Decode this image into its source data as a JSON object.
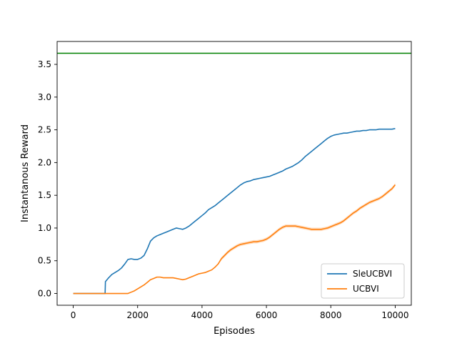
{
  "chart_data": {
    "type": "line",
    "title": "",
    "xlabel": "Episodes",
    "ylabel": "Instantanous Reward",
    "xlim": [
      -500,
      10500
    ],
    "ylim": [
      -0.18,
      3.85
    ],
    "xticks": [
      0,
      2000,
      4000,
      6000,
      8000,
      10000
    ],
    "yticks": [
      0.0,
      0.5,
      1.0,
      1.5,
      2.0,
      2.5,
      3.0,
      3.5
    ],
    "xtick_labels": [
      "0",
      "2000",
      "4000",
      "6000",
      "8000",
      "10000"
    ],
    "ytick_labels": [
      "0.0",
      "0.5",
      "1.0",
      "1.5",
      "2.0",
      "2.5",
      "3.0",
      "3.5"
    ],
    "grid": false,
    "legend_position": "lower-right",
    "reference_line": {
      "y": 3.67,
      "color": "#008000"
    },
    "series": [
      {
        "name": "SleUCBVI",
        "color": "#1f77b4",
        "x": [
          0,
          990,
          1000,
          1100,
          1200,
          1300,
          1400,
          1500,
          1600,
          1700,
          1800,
          1900,
          2000,
          2100,
          2200,
          2300,
          2400,
          2500,
          2600,
          2700,
          2800,
          2900,
          3000,
          3100,
          3200,
          3300,
          3400,
          3500,
          3600,
          3700,
          3800,
          3900,
          4000,
          4100,
          4200,
          4300,
          4400,
          4500,
          4600,
          4700,
          4800,
          4900,
          5000,
          5100,
          5200,
          5300,
          5400,
          5500,
          5600,
          5700,
          5800,
          5900,
          6000,
          6100,
          6200,
          6300,
          6400,
          6500,
          6600,
          6700,
          6800,
          6900,
          7000,
          7100,
          7200,
          7300,
          7400,
          7500,
          7600,
          7700,
          7800,
          7900,
          8000,
          8100,
          8200,
          8300,
          8400,
          8500,
          8600,
          8700,
          8800,
          8900,
          9000,
          9100,
          9200,
          9300,
          9400,
          9500,
          9600,
          9700,
          9800,
          9900,
          10000
        ],
        "y": [
          0.0,
          0.0,
          0.18,
          0.24,
          0.29,
          0.32,
          0.35,
          0.39,
          0.45,
          0.52,
          0.53,
          0.52,
          0.52,
          0.54,
          0.58,
          0.68,
          0.8,
          0.85,
          0.88,
          0.9,
          0.92,
          0.94,
          0.96,
          0.98,
          1.0,
          0.99,
          0.98,
          1.0,
          1.03,
          1.07,
          1.11,
          1.15,
          1.19,
          1.23,
          1.28,
          1.31,
          1.34,
          1.38,
          1.42,
          1.46,
          1.5,
          1.54,
          1.58,
          1.62,
          1.66,
          1.69,
          1.71,
          1.72,
          1.74,
          1.75,
          1.76,
          1.77,
          1.78,
          1.79,
          1.81,
          1.83,
          1.85,
          1.87,
          1.9,
          1.92,
          1.94,
          1.97,
          2.0,
          2.04,
          2.09,
          2.13,
          2.17,
          2.21,
          2.25,
          2.29,
          2.33,
          2.37,
          2.4,
          2.42,
          2.43,
          2.44,
          2.45,
          2.45,
          2.46,
          2.47,
          2.48,
          2.48,
          2.49,
          2.49,
          2.5,
          2.5,
          2.5,
          2.51,
          2.51,
          2.51,
          2.51,
          2.51,
          2.52
        ]
      },
      {
        "name": "UCBVI",
        "color": "#ff7f0e",
        "x": [
          0,
          1000,
          1600,
          1700,
          1800,
          1900,
          2000,
          2100,
          2200,
          2300,
          2400,
          2500,
          2600,
          2700,
          2800,
          2900,
          3000,
          3100,
          3200,
          3300,
          3400,
          3500,
          3600,
          3700,
          3800,
          3900,
          4000,
          4100,
          4200,
          4300,
          4400,
          4500,
          4600,
          4700,
          4800,
          4900,
          5000,
          5100,
          5200,
          5300,
          5400,
          5500,
          5600,
          5700,
          5800,
          5900,
          6000,
          6100,
          6200,
          6300,
          6400,
          6500,
          6600,
          6700,
          6800,
          6900,
          7000,
          7100,
          7200,
          7300,
          7400,
          7500,
          7600,
          7700,
          7800,
          7900,
          8000,
          8100,
          8200,
          8300,
          8400,
          8500,
          8600,
          8700,
          8800,
          8900,
          9000,
          9100,
          9200,
          9300,
          9400,
          9500,
          9600,
          9700,
          9800,
          9900,
          10000
        ],
        "y": [
          0.0,
          0.0,
          0.0,
          0.0,
          0.02,
          0.04,
          0.07,
          0.1,
          0.13,
          0.17,
          0.21,
          0.23,
          0.25,
          0.25,
          0.24,
          0.24,
          0.24,
          0.24,
          0.23,
          0.22,
          0.21,
          0.22,
          0.24,
          0.26,
          0.28,
          0.3,
          0.31,
          0.32,
          0.34,
          0.36,
          0.4,
          0.45,
          0.53,
          0.58,
          0.63,
          0.67,
          0.7,
          0.73,
          0.75,
          0.76,
          0.77,
          0.78,
          0.79,
          0.79,
          0.8,
          0.81,
          0.83,
          0.86,
          0.9,
          0.94,
          0.98,
          1.01,
          1.03,
          1.03,
          1.03,
          1.03,
          1.02,
          1.01,
          1.0,
          0.99,
          0.98,
          0.98,
          0.98,
          0.98,
          0.99,
          1.0,
          1.02,
          1.04,
          1.06,
          1.08,
          1.11,
          1.15,
          1.19,
          1.23,
          1.26,
          1.3,
          1.33,
          1.36,
          1.39,
          1.41,
          1.43,
          1.45,
          1.48,
          1.52,
          1.56,
          1.6,
          1.66
        ]
      }
    ]
  }
}
